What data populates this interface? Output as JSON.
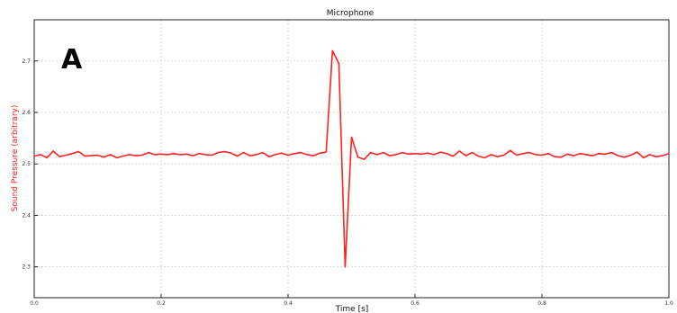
{
  "panel_label": "A",
  "chart_data": {
    "type": "line",
    "title": "Microphone",
    "xlabel": "Time [s]",
    "ylabel": "Sound Pressure (arbitrary)",
    "xlim": [
      0.0,
      1.0
    ],
    "ylim": [
      2.24,
      2.78
    ],
    "grid": true,
    "x_ticks": [
      0.0,
      0.2,
      0.4,
      0.6,
      0.8,
      1.0
    ],
    "x_tick_labels": [
      "0.0",
      "0.2",
      "0.4",
      "0.6",
      "0.8",
      "1.0"
    ],
    "y_ticks": [
      2.3,
      2.4,
      2.5,
      2.6,
      2.7
    ],
    "y_tick_labels": [
      "2.3",
      "2.4",
      "2.5",
      "2.6",
      "2.7"
    ],
    "series": [
      {
        "color": "#ff2020",
        "x": [
          0.0,
          0.01,
          0.02,
          0.03,
          0.04,
          0.05,
          0.06,
          0.07,
          0.08,
          0.09,
          0.1,
          0.11,
          0.12,
          0.13,
          0.14,
          0.15,
          0.16,
          0.17,
          0.18,
          0.19,
          0.2,
          0.21,
          0.22,
          0.23,
          0.24,
          0.25,
          0.26,
          0.27,
          0.28,
          0.29,
          0.3,
          0.31,
          0.32,
          0.33,
          0.34,
          0.35,
          0.36,
          0.37,
          0.38,
          0.39,
          0.4,
          0.41,
          0.42,
          0.43,
          0.44,
          0.45,
          0.46,
          0.47,
          0.48,
          0.49,
          0.5,
          0.51,
          0.52,
          0.53,
          0.54,
          0.55,
          0.56,
          0.57,
          0.58,
          0.59,
          0.6,
          0.61,
          0.62,
          0.63,
          0.64,
          0.65,
          0.66,
          0.67,
          0.68,
          0.69,
          0.7,
          0.71,
          0.72,
          0.73,
          0.74,
          0.75,
          0.76,
          0.77,
          0.78,
          0.79,
          0.8,
          0.81,
          0.82,
          0.83,
          0.84,
          0.85,
          0.86,
          0.87,
          0.88,
          0.89,
          0.9,
          0.91,
          0.92,
          0.93,
          0.94,
          0.95,
          0.96,
          0.97,
          0.98,
          0.99,
          1.0
        ],
        "y": [
          2.515,
          2.518,
          2.512,
          2.525,
          2.514,
          2.517,
          2.52,
          2.524,
          2.515,
          2.516,
          2.517,
          2.513,
          2.518,
          2.512,
          2.515,
          2.518,
          2.516,
          2.517,
          2.522,
          2.518,
          2.519,
          2.518,
          2.52,
          2.518,
          2.519,
          2.516,
          2.52,
          2.518,
          2.517,
          2.522,
          2.524,
          2.521,
          2.515,
          2.522,
          2.516,
          2.518,
          2.522,
          2.514,
          2.518,
          2.521,
          2.517,
          2.52,
          2.522,
          2.518,
          2.516,
          2.521,
          2.523,
          2.72,
          2.695,
          2.3,
          2.552,
          2.513,
          2.509,
          2.522,
          2.518,
          2.522,
          2.516,
          2.518,
          2.522,
          2.519,
          2.52,
          2.519,
          2.521,
          2.518,
          2.523,
          2.52,
          2.515,
          2.525,
          2.516,
          2.522,
          2.515,
          2.512,
          2.518,
          2.514,
          2.517,
          2.526,
          2.517,
          2.52,
          2.522,
          2.518,
          2.517,
          2.52,
          2.514,
          2.513,
          2.519,
          2.516,
          2.52,
          2.518,
          2.516,
          2.52,
          2.519,
          2.522,
          2.516,
          2.513,
          2.517,
          2.523,
          2.512,
          2.518,
          2.514,
          2.516,
          2.52
        ]
      }
    ]
  }
}
